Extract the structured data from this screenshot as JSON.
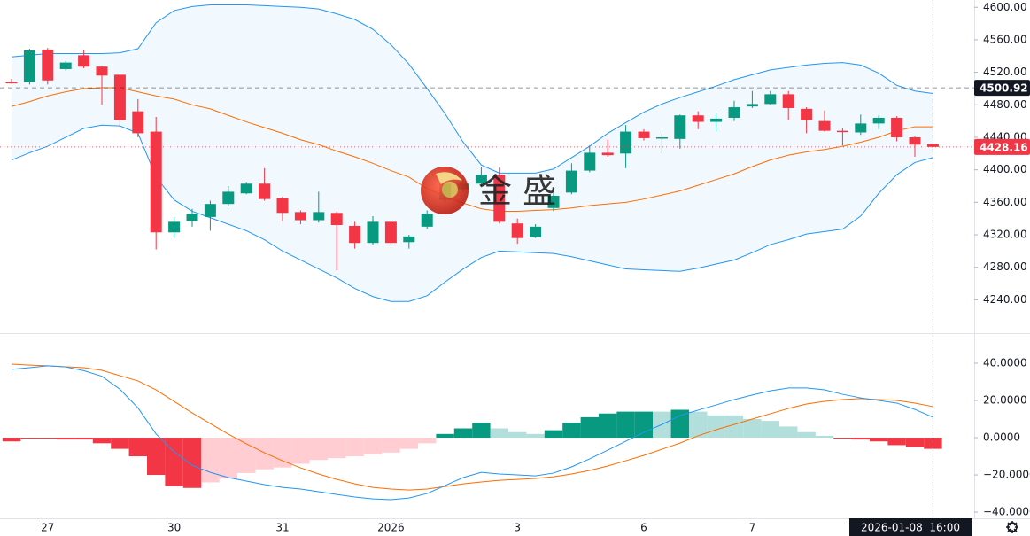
{
  "chart_data": [
    {
      "type": "candlestick",
      "categories": [
        null,
        null,
        "27",
        null,
        null,
        null,
        null,
        null,
        null,
        "30",
        null,
        null,
        null,
        null,
        null,
        "31",
        null,
        null,
        null,
        null,
        null,
        "2026",
        null,
        null,
        null,
        null,
        null,
        null,
        "3",
        null,
        null,
        null,
        null,
        null,
        null,
        "6",
        null,
        null,
        null,
        null,
        null,
        "7",
        null,
        null,
        null,
        null,
        null,
        null,
        null,
        null,
        null,
        null
      ],
      "open": [
        4508,
        4508,
        4548,
        4524,
        4541,
        4527,
        4517,
        4472,
        4447,
        4323,
        4337,
        4342,
        4358,
        4371,
        4383,
        4365,
        4348,
        4338,
        4347,
        4331,
        4310,
        4336,
        4311,
        4330,
        4363,
        4376,
        4383,
        4394,
        4334,
        4317,
        4353,
        4372,
        4399,
        4421,
        4420,
        4447,
        4439,
        4438,
        4467,
        4459,
        4464,
        4478,
        4481,
        4493,
        4475,
        4460,
        4448,
        4446,
        4457,
        4464,
        4440,
        4432
      ],
      "high": [
        4512,
        4549,
        4550,
        4534,
        4547,
        4528,
        4518,
        4487,
        4465,
        4342,
        4352,
        4362,
        4380,
        4385,
        4402,
        4367,
        4350,
        4373,
        4349,
        4336,
        4343,
        4338,
        4320,
        4350,
        4385,
        4388,
        4403,
        4403,
        4340,
        4333,
        4372,
        4408,
        4430,
        4437,
        4455,
        4450,
        4445,
        4468,
        4472,
        4470,
        4485,
        4497,
        4497,
        4497,
        4477,
        4473,
        4451,
        4468,
        4467,
        4466,
        4441,
        4433
      ],
      "low": [
        4506,
        4505,
        4505,
        4522,
        4525,
        4480,
        4453,
        4440,
        4302,
        4316,
        4330,
        4325,
        4355,
        4370,
        4362,
        4337,
        4333,
        4335,
        4276,
        4303,
        4308,
        4308,
        4303,
        4327,
        4360,
        4373,
        4380,
        4334,
        4309,
        4316,
        4349,
        4370,
        4397,
        4416,
        4402,
        4436,
        4420,
        4426,
        4450,
        4447,
        4460,
        4476,
        4480,
        4461,
        4445,
        4447,
        4430,
        4443,
        4450,
        4435,
        4416,
        4427
      ],
      "close": [
        4507,
        4547,
        4510,
        4532,
        4527,
        4516,
        4461,
        4445,
        4323,
        4336,
        4346,
        4358,
        4373,
        4383,
        4364,
        4347,
        4338,
        4348,
        4332,
        4310,
        4336,
        4310,
        4318,
        4346,
        4383,
        4383,
        4394,
        4336,
        4316,
        4330,
        4368,
        4399,
        4421,
        4418,
        4447,
        4439,
        4440,
        4467,
        4459,
        4463,
        4477,
        4481,
        4493,
        4476,
        4461,
        4448,
        4447,
        4457,
        4464,
        4440,
        4431,
        4428.16
      ],
      "up_color": "#089981",
      "down_color": "#f23645",
      "bollinger": {
        "upper": [
          4539,
          4541,
          4543,
          4543,
          4543,
          4543,
          4544,
          4549,
          4581,
          4596,
          4601,
          4603,
          4603,
          4603,
          4602,
          4601,
          4600,
          4598,
          4592,
          4585,
          4573,
          4554,
          4530,
          4500,
          4469,
          4434,
          4406,
          4396,
          4396,
          4396,
          4401,
          4415,
          4429,
          4445,
          4458,
          4471,
          4481,
          4489,
          4496,
          4503,
          4511,
          4517,
          4523,
          4526,
          4529,
          4531,
          4532,
          4529,
          4519,
          4504,
          4497,
          4494
        ],
        "middle": [
          4478,
          4484,
          4491,
          4496,
          4500,
          4501,
          4501,
          4496,
          4491,
          4487,
          4480,
          4475,
          4467,
          4459,
          4452,
          4445,
          4437,
          4431,
          4423,
          4416,
          4408,
          4399,
          4391,
          4377,
          4367,
          4359,
          4352,
          4349,
          4349,
          4350,
          4351,
          4353,
          4356,
          4358,
          4360,
          4364,
          4369,
          4374,
          4381,
          4388,
          4395,
          4404,
          4412,
          4418,
          4422,
          4425,
          4429,
          4434,
          4440,
          4448,
          4453,
          4453
        ],
        "lower": [
          4412,
          4421,
          4429,
          4440,
          4451,
          4455,
          4454,
          4445,
          4391,
          4363,
          4349,
          4341,
          4333,
          4325,
          4314,
          4300,
          4289,
          4278,
          4267,
          4254,
          4244,
          4238,
          4238,
          4245,
          4262,
          4278,
          4292,
          4300,
          4299,
          4298,
          4297,
          4293,
          4288,
          4283,
          4278,
          4277,
          4276,
          4275,
          4279,
          4284,
          4289,
          4298,
          4308,
          4314,
          4321,
          4324,
          4327,
          4343,
          4371,
          4394,
          4409,
          4415
        ],
        "band_color": "#2196f3",
        "middle_color": "#ff6d00"
      },
      "ylim": [
        4199,
        4609
      ],
      "yticks": [
        {
          "value": 4240,
          "label": "4240.00"
        },
        {
          "value": 4280,
          "label": "4280.00"
        },
        {
          "value": 4320,
          "label": "4320.00"
        },
        {
          "value": 4360,
          "label": "4360.00"
        },
        {
          "value": 4400,
          "label": "4400.00"
        },
        {
          "value": 4440,
          "label": "4440.00"
        },
        {
          "value": 4480,
          "label": "4480.00"
        },
        {
          "value": 4520,
          "label": "4520.00"
        },
        {
          "value": 4560,
          "label": "4560.00"
        },
        {
          "value": 4600,
          "label": "4600.00"
        }
      ],
      "price_lines": [
        {
          "value": 4500.92,
          "color": "#131722",
          "style": "dashed"
        },
        {
          "value": 4428.16,
          "color": "#f23645",
          "style": "dotted"
        }
      ],
      "crosshair_label": "2026-01-08  16:00",
      "watermark": "金 盛"
    },
    {
      "type": "macd",
      "histogram": [
        -2,
        -0.5,
        -0.5,
        -1,
        -1,
        -3,
        -6,
        -10,
        -20,
        -26,
        -27,
        -24,
        -22,
        -19,
        -17,
        -16,
        -14,
        -12,
        -11,
        -10,
        -9,
        -8,
        -6,
        -3,
        2,
        5,
        8,
        5,
        3,
        2,
        4,
        8,
        11,
        13,
        14,
        14,
        14,
        15,
        14,
        12,
        12,
        10,
        9,
        6,
        3,
        1,
        -0.5,
        -1,
        -2,
        -4,
        -5,
        -6
      ],
      "histogram_colors": [
        "#f23645",
        "#f23645",
        "#f23645",
        "#f23645",
        "#f23645",
        "#f23645",
        "#f23645",
        "#f23645",
        "#f23645",
        "#f23645",
        "#f23645",
        "#ffcdd2",
        "#ffcdd2",
        "#ffcdd2",
        "#ffcdd2",
        "#ffcdd2",
        "#ffcdd2",
        "#ffcdd2",
        "#ffcdd2",
        "#ffcdd2",
        "#ffcdd2",
        "#ffcdd2",
        "#ffcdd2",
        "#ffcdd2",
        "#089981",
        "#089981",
        "#089981",
        "#b2dfdb",
        "#b2dfdb",
        "#b2dfdb",
        "#089981",
        "#089981",
        "#089981",
        "#089981",
        "#089981",
        "#089981",
        "#b2dfdb",
        "#089981",
        "#b2dfdb",
        "#b2dfdb",
        "#b2dfdb",
        "#b2dfdb",
        "#b2dfdb",
        "#b2dfdb",
        "#b2dfdb",
        "#b2dfdb",
        "#f23645",
        "#f23645",
        "#f23645",
        "#f23645",
        "#f23645",
        "#f23645"
      ],
      "macd": [
        36.7,
        37.6,
        38.6,
        38,
        36,
        33,
        26,
        16,
        2,
        -7.6,
        -14.8,
        -18.6,
        -21.4,
        -23.3,
        -25.2,
        -26.7,
        -27.6,
        -29,
        -30.5,
        -31.9,
        -32.9,
        -33.3,
        -32.4,
        -30,
        -25.7,
        -21.4,
        -18.6,
        -19.5,
        -20,
        -20.5,
        -19,
        -15.7,
        -11.4,
        -6.7,
        -1.9,
        2.9,
        7.1,
        11.9,
        14.8,
        17.6,
        20.5,
        22.9,
        25.2,
        26.7,
        26.7,
        25.7,
        23.3,
        21.4,
        20,
        18.6,
        15.2,
        11
      ],
      "signal": [
        39.5,
        39,
        38.6,
        38.1,
        37.6,
        36.2,
        33.3,
        30.5,
        25.7,
        19.5,
        13.3,
        7.6,
        1.9,
        -3.3,
        -8.1,
        -12.4,
        -16.2,
        -19.5,
        -22.4,
        -24.8,
        -26.7,
        -27.6,
        -28.1,
        -27.6,
        -26.2,
        -24.8,
        -23.8,
        -22.9,
        -22.4,
        -21.9,
        -21,
        -19.5,
        -17.6,
        -15.2,
        -12.4,
        -9.5,
        -6.2,
        -2.9,
        1,
        4.3,
        7.1,
        10,
        12.9,
        15.7,
        18.1,
        19.5,
        20.5,
        21,
        20.5,
        20,
        18.6,
        16.7
      ],
      "macd_color": "#2196f3",
      "signal_color": "#ff6d00",
      "ylim": [
        -43.3,
        55.7
      ],
      "yticks": [
        {
          "value": 40,
          "label": "40.0000"
        },
        {
          "value": 20,
          "label": "20.0000"
        },
        {
          "value": 0,
          "label": "0.0000"
        },
        {
          "value": -20,
          "label": "−20.0000"
        },
        {
          "value": -40,
          "label": "−40.0000"
        }
      ]
    }
  ]
}
